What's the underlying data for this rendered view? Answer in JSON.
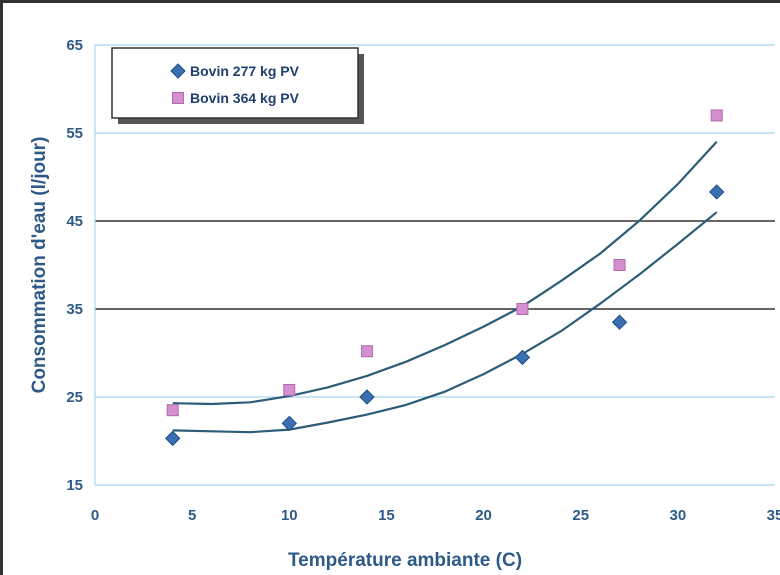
{
  "chart_data": {
    "type": "scatter",
    "xlabel": "Température ambiante (C)",
    "ylabel": "Consommation d'eau (l/jour)",
    "xlim": [
      0,
      35
    ],
    "ylim": [
      15,
      65
    ],
    "xticks": [
      0,
      5,
      10,
      15,
      20,
      25,
      30,
      35
    ],
    "yticks": [
      15,
      25,
      35,
      45,
      55,
      65
    ],
    "grid": "horizontal",
    "legend": "top-left",
    "series": [
      {
        "name": "Bovin 277 kg PV",
        "marker": "diamond",
        "color": "#3a6fb0",
        "x": [
          4,
          10,
          14,
          22,
          27,
          32
        ],
        "y": [
          20.3,
          22.0,
          25.0,
          29.5,
          33.5,
          48.3
        ],
        "trend": {
          "x": [
            4,
            6,
            8,
            10,
            12,
            14,
            16,
            18,
            20,
            22,
            24,
            26,
            28,
            30,
            32
          ],
          "y": [
            21.2,
            21.1,
            21.0,
            21.3,
            22.1,
            23.0,
            24.1,
            25.6,
            27.6,
            29.9,
            32.5,
            35.6,
            38.9,
            42.4,
            46.0
          ]
        }
      },
      {
        "name": "Bovin 364 kg PV",
        "marker": "square",
        "color": "#d48fd0",
        "x": [
          4,
          10,
          14,
          22,
          27,
          32
        ],
        "y": [
          23.5,
          25.8,
          30.2,
          35.0,
          40.0,
          57.0
        ],
        "trend": {
          "x": [
            4,
            6,
            8,
            10,
            12,
            14,
            16,
            18,
            20,
            22,
            24,
            26,
            28,
            30,
            32
          ],
          "y": [
            24.3,
            24.2,
            24.4,
            25.1,
            26.1,
            27.4,
            29.0,
            30.9,
            33.0,
            35.3,
            38.2,
            41.3,
            45.0,
            49.2,
            54.0
          ]
        }
      }
    ]
  }
}
